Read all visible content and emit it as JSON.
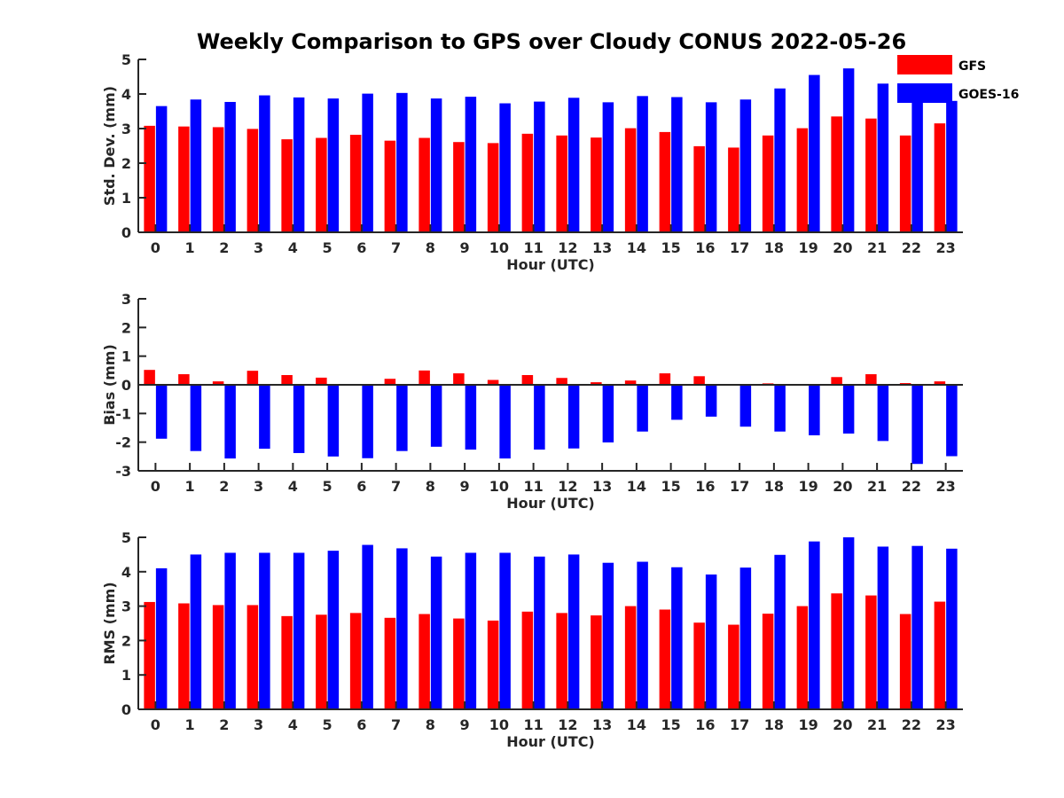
{
  "figure_title": "Weekly Comparison to GPS over Cloudy CONUS 2022-05-26",
  "legend": [
    {
      "label": "GFS",
      "color": "#ff0000"
    },
    {
      "label": "GOES-16",
      "color": "#0000ff"
    }
  ],
  "chart_data": [
    {
      "type": "bar",
      "ylabel": "Std. Dev. (mm)",
      "xlabel": "Hour (UTC)",
      "ylim": [
        0,
        5
      ],
      "yticks": [
        0,
        1,
        2,
        3,
        4,
        5
      ],
      "categories": [
        "0",
        "1",
        "2",
        "3",
        "4",
        "5",
        "6",
        "7",
        "8",
        "9",
        "10",
        "11",
        "12",
        "13",
        "14",
        "15",
        "16",
        "17",
        "18",
        "19",
        "20",
        "21",
        "22",
        "23"
      ],
      "series": [
        {
          "name": "GFS",
          "color": "#ff0000",
          "values": [
            3.08,
            3.06,
            3.04,
            2.99,
            2.69,
            2.73,
            2.82,
            2.65,
            2.73,
            2.61,
            2.58,
            2.85,
            2.8,
            2.74,
            3.01,
            2.9,
            2.49,
            2.45,
            2.8,
            3.01,
            3.35,
            3.29,
            2.8,
            3.15
          ]
        },
        {
          "name": "GOES-16",
          "color": "#0000ff",
          "values": [
            3.65,
            3.84,
            3.77,
            3.96,
            3.9,
            3.87,
            4.01,
            4.03,
            3.87,
            3.92,
            3.73,
            3.78,
            3.89,
            3.76,
            3.94,
            3.91,
            3.76,
            3.84,
            4.16,
            4.55,
            4.74,
            4.3,
            3.86,
            3.8
          ]
        }
      ]
    },
    {
      "type": "bar",
      "ylabel": "Bias (mm)",
      "xlabel": "Hour (UTC)",
      "ylim": [
        -3,
        3
      ],
      "yticks": [
        -3,
        -2,
        -1,
        0,
        1,
        2,
        3
      ],
      "categories": [
        "0",
        "1",
        "2",
        "3",
        "4",
        "5",
        "6",
        "7",
        "8",
        "9",
        "10",
        "11",
        "12",
        "13",
        "14",
        "15",
        "16",
        "17",
        "18",
        "19",
        "20",
        "21",
        "22",
        "23"
      ],
      "series": [
        {
          "name": "GFS",
          "color": "#ff0000",
          "values": [
            0.52,
            0.37,
            0.12,
            0.49,
            0.34,
            0.25,
            0.03,
            0.21,
            0.5,
            0.4,
            0.17,
            0.34,
            0.24,
            0.09,
            0.15,
            0.4,
            0.3,
            0.03,
            0.05,
            0.02,
            0.27,
            0.37,
            0.06,
            0.12
          ]
        },
        {
          "name": "GOES-16",
          "color": "#0000ff",
          "values": [
            -1.88,
            -2.31,
            -2.57,
            -2.23,
            -2.38,
            -2.5,
            -2.56,
            -2.31,
            -2.16,
            -2.26,
            -2.57,
            -2.26,
            -2.22,
            -2.01,
            -1.63,
            -1.22,
            -1.11,
            -1.46,
            -1.63,
            -1.76,
            -1.7,
            -1.96,
            -2.76,
            -2.49
          ]
        }
      ]
    },
    {
      "type": "bar",
      "ylabel": "RMS (mm)",
      "xlabel": "Hour (UTC)",
      "ylim": [
        0,
        5
      ],
      "yticks": [
        0,
        1,
        2,
        3,
        4,
        5
      ],
      "categories": [
        "0",
        "1",
        "2",
        "3",
        "4",
        "5",
        "6",
        "7",
        "8",
        "9",
        "10",
        "11",
        "12",
        "13",
        "14",
        "15",
        "16",
        "17",
        "18",
        "19",
        "20",
        "21",
        "22",
        "23"
      ],
      "series": [
        {
          "name": "GFS",
          "color": "#ff0000",
          "values": [
            3.12,
            3.08,
            3.03,
            3.03,
            2.71,
            2.75,
            2.8,
            2.66,
            2.77,
            2.64,
            2.58,
            2.84,
            2.8,
            2.73,
            3.0,
            2.9,
            2.52,
            2.46,
            2.78,
            3.0,
            3.37,
            3.31,
            2.77,
            3.13
          ]
        },
        {
          "name": "GOES-16",
          "color": "#0000ff",
          "values": [
            4.1,
            4.5,
            4.55,
            4.55,
            4.55,
            4.61,
            4.78,
            4.68,
            4.44,
            4.55,
            4.55,
            4.44,
            4.5,
            4.26,
            4.29,
            4.13,
            3.92,
            4.12,
            4.49,
            4.88,
            5.0,
            4.73,
            4.75,
            4.67
          ]
        }
      ]
    }
  ]
}
